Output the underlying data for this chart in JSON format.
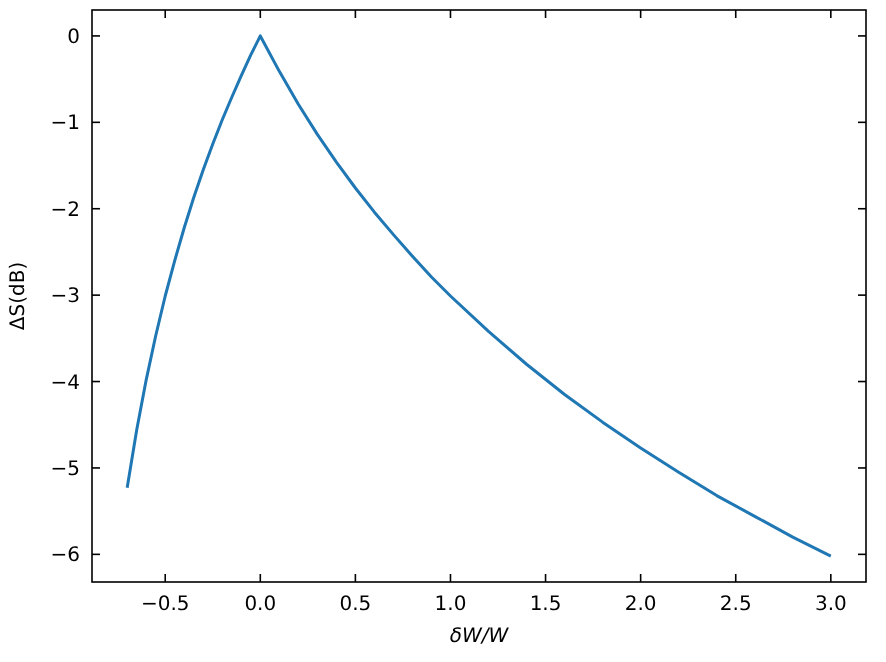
{
  "chart_data": {
    "type": "line",
    "xlabel": "δW/W",
    "ylabel": "ΔS(dB)",
    "x": [
      -0.7,
      -0.65,
      -0.6,
      -0.55,
      -0.5,
      -0.45,
      -0.4,
      -0.35,
      -0.3,
      -0.25,
      -0.2,
      -0.15,
      -0.1,
      -0.05,
      0,
      0.1,
      0.2,
      0.3,
      0.4,
      0.5,
      0.6,
      0.7,
      0.8,
      0.9,
      1.0,
      1.2,
      1.4,
      1.6,
      1.8,
      2.0,
      2.2,
      2.4,
      2.6,
      2.8,
      3.0
    ],
    "series": [
      {
        "color": "#1f77b4",
        "values": [
          -5.23,
          -4.56,
          -3.98,
          -3.47,
          -3.01,
          -2.6,
          -2.22,
          -1.87,
          -1.55,
          -1.25,
          -0.97,
          -0.71,
          -0.46,
          -0.22,
          0,
          -0.41,
          -0.79,
          -1.14,
          -1.46,
          -1.76,
          -2.04,
          -2.3,
          -2.55,
          -2.79,
          -3.01,
          -3.42,
          -3.8,
          -4.15,
          -4.47,
          -4.77,
          -5.05,
          -5.32,
          -5.56,
          -5.8,
          -6.02
        ]
      }
    ],
    "xlim": [
      -0.885,
      3.185
    ],
    "xticks": [
      -0.5,
      {
        "value": 0,
        "label": "0.0"
      },
      0.5,
      {
        "value": 1,
        "label": "1.0"
      },
      1.5,
      {
        "value": 2,
        "label": "2.0"
      },
      2.5,
      {
        "value": 3,
        "label": "3.0"
      }
    ],
    "ylim": [
      -6.32,
      0.3
    ],
    "yticks": [
      -6,
      -5,
      -4,
      -3,
      -2,
      -1,
      0
    ],
    "grid": false,
    "line_style": "solid"
  }
}
